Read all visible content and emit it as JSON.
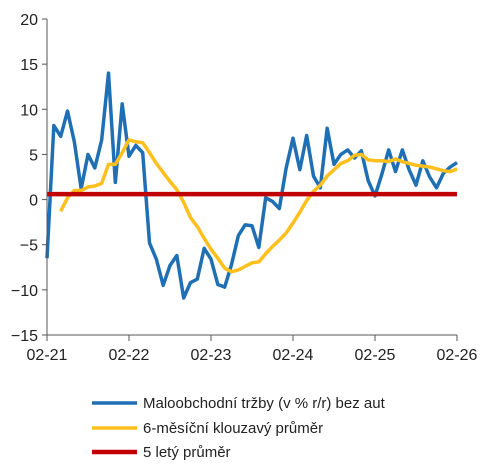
{
  "chart_data": {
    "type": "line",
    "title": "",
    "xlabel": "",
    "ylabel": "",
    "ylim": [
      -15,
      20
    ],
    "yticks": [
      20,
      15,
      10,
      5,
      0,
      -5,
      -10,
      -15
    ],
    "xlim": [
      "02-21",
      "02-26"
    ],
    "xticks": [
      "02-21",
      "02-22",
      "02-23",
      "02-24",
      "02-25",
      "02-26"
    ],
    "grid": false,
    "legend_position": "bottom",
    "series": [
      {
        "name": "Maloobchodní tržby (v % r/r) bez aut",
        "color": "#1f6fb5",
        "x": [
          "02-21",
          "03-21",
          "04-21",
          "05-21",
          "06-21",
          "07-21",
          "08-21",
          "09-21",
          "10-21",
          "11-21",
          "12-21",
          "01-22",
          "02-22",
          "03-22",
          "04-22",
          "05-22",
          "06-22",
          "07-22",
          "08-22",
          "09-22",
          "10-22",
          "11-22",
          "12-22",
          "01-23",
          "02-23",
          "03-23",
          "04-23",
          "05-23",
          "06-23",
          "07-23",
          "08-23",
          "09-23",
          "10-23",
          "11-23",
          "12-23",
          "01-24",
          "02-24",
          "03-24",
          "04-24",
          "05-24",
          "06-24",
          "07-24",
          "08-24",
          "09-24",
          "10-24",
          "11-24",
          "12-24",
          "01-25",
          "02-25",
          "03-25",
          "04-25",
          "05-25",
          "06-25",
          "07-25",
          "08-25",
          "09-25",
          "10-25",
          "11-25",
          "12-25",
          "01-26",
          "02-26"
        ],
        "values": [
          -6.5,
          8.2,
          7.0,
          9.8,
          6.4,
          1.2,
          5.0,
          3.5,
          6.6,
          14.0,
          1.9,
          10.6,
          4.8,
          6.0,
          5.2,
          -4.8,
          -6.6,
          -9.5,
          -7.3,
          -6.2,
          -10.9,
          -9.2,
          -8.8,
          -5.4,
          -6.6,
          -9.4,
          -9.7,
          -7.2,
          -4.0,
          -2.8,
          -2.9,
          -5.3,
          0.2,
          -0.2,
          -1.0,
          3.5,
          6.8,
          3.3,
          7.1,
          2.6,
          1.3,
          7.9,
          3.9,
          5.0,
          5.5,
          4.6,
          5.4,
          2.1,
          0.4,
          2.8,
          5.5,
          3.1,
          5.5,
          3.3,
          1.6,
          4.3,
          2.5,
          1.3,
          2.9,
          3.6,
          4.1
        ]
      },
      {
        "name": "6-měsíční klouzavý průměr",
        "color": "#ffbf1c",
        "x": [
          "04-21",
          "05-21",
          "06-21",
          "07-21",
          "08-21",
          "09-21",
          "10-21",
          "11-21",
          "12-21",
          "01-22",
          "02-22",
          "03-22",
          "04-22",
          "05-22",
          "06-22",
          "07-22",
          "08-22",
          "09-22",
          "10-22",
          "11-22",
          "12-22",
          "01-23",
          "02-23",
          "03-23",
          "04-23",
          "05-23",
          "06-23",
          "07-23",
          "08-23",
          "09-23",
          "10-23",
          "11-23",
          "12-23",
          "01-24",
          "02-24",
          "03-24",
          "04-24",
          "05-24",
          "06-24",
          "07-24",
          "08-24",
          "09-24",
          "10-24",
          "11-24",
          "12-24",
          "01-25",
          "02-25",
          "03-25",
          "04-25",
          "05-25",
          "06-25",
          "07-25",
          "08-25",
          "09-25",
          "10-25",
          "11-25",
          "12-25",
          "01-26",
          "02-26"
        ],
        "values": [
          -1.3,
          0.2,
          1.0,
          1.0,
          1.4,
          1.5,
          1.8,
          3.9,
          3.9,
          5.2,
          6.6,
          6.4,
          6.3,
          5.2,
          4.0,
          3.0,
          2.0,
          1.1,
          -0.3,
          -2.0,
          -3.0,
          -4.3,
          -5.5,
          -6.5,
          -7.6,
          -8.0,
          -7.8,
          -7.4,
          -7.0,
          -6.9,
          -6.0,
          -5.2,
          -4.5,
          -3.7,
          -2.6,
          -1.4,
          -0.1,
          0.9,
          1.6,
          2.6,
          3.3,
          4.0,
          4.3,
          4.9,
          5.0,
          4.4,
          4.3,
          4.3,
          4.2,
          4.5,
          4.2,
          4.0,
          3.8,
          3.7,
          3.6,
          3.4,
          3.2,
          3.1,
          3.4
        ]
      },
      {
        "name": "5 letý průměr",
        "color": "#c00000",
        "x": [
          "02-21",
          "02-26"
        ],
        "values": [
          0.6,
          0.6
        ]
      }
    ]
  }
}
